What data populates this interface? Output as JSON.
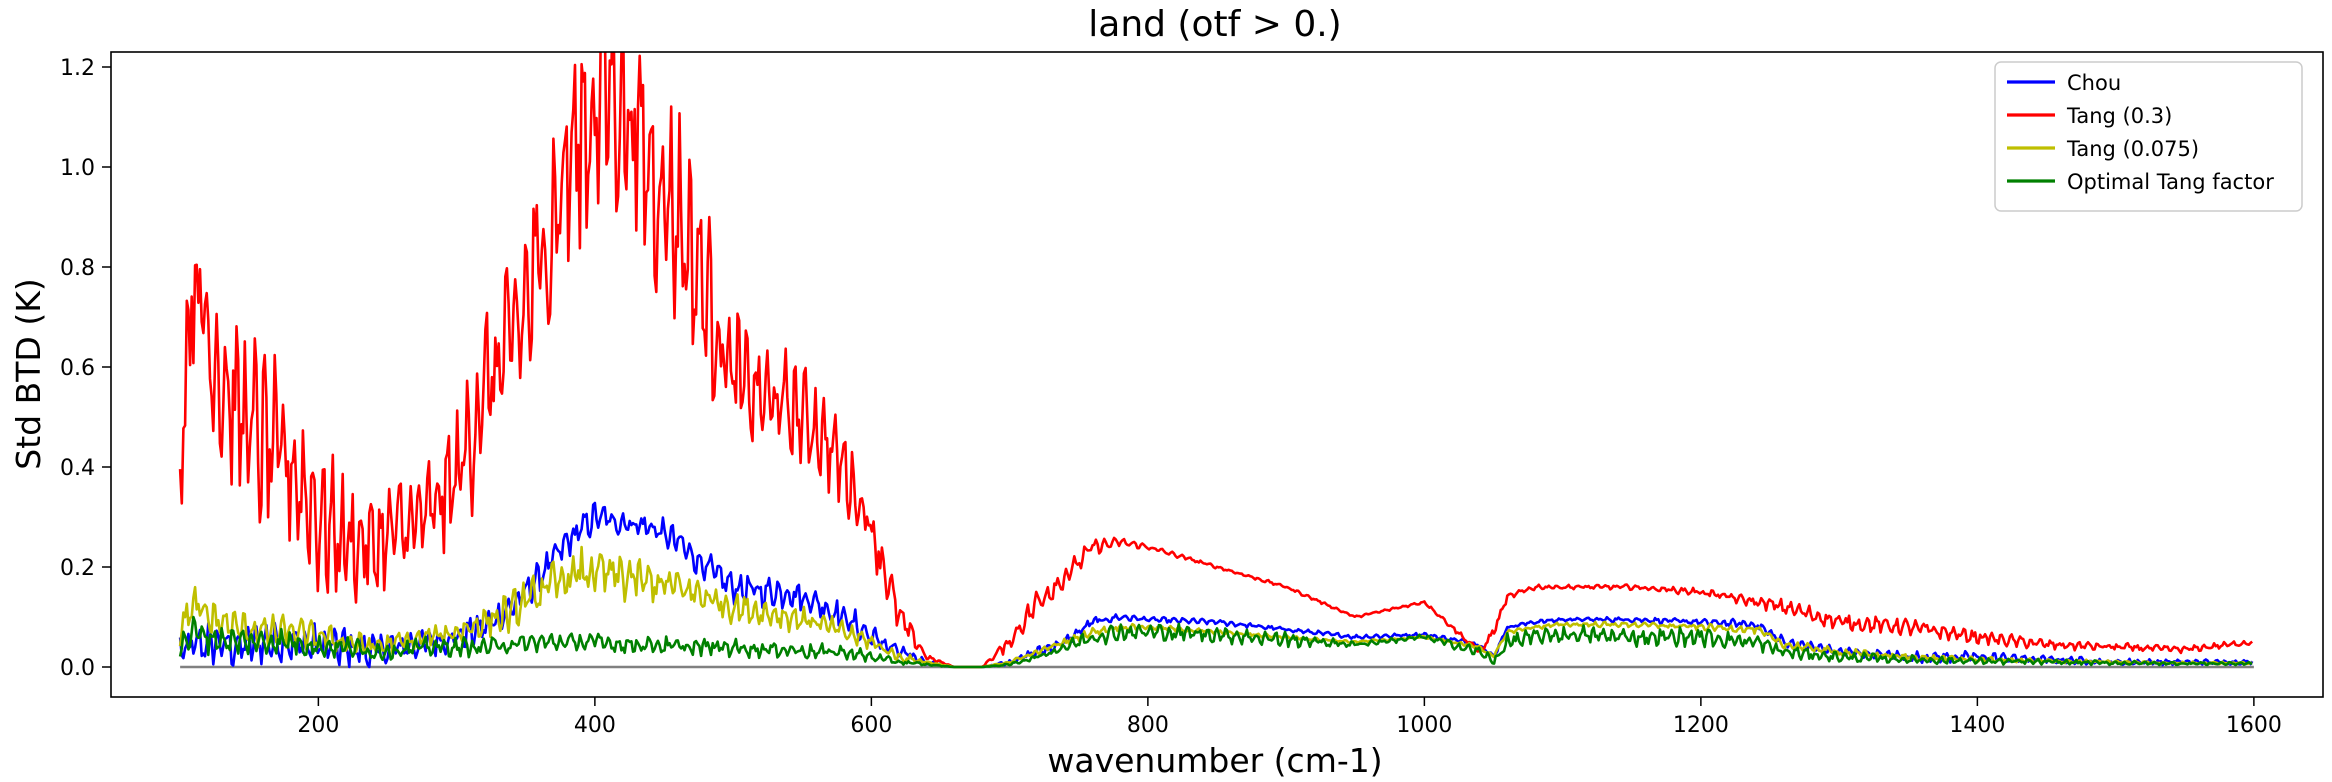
{
  "chart_data": {
    "type": "line",
    "title": "land (otf > 0.)",
    "xlabel": "wavenumber (cm-1)",
    "ylabel": "Std BTD (K)",
    "xlim": [
      50,
      1650
    ],
    "ylim": [
      -0.06,
      1.23
    ],
    "xticks": [
      200,
      400,
      600,
      800,
      1000,
      1200,
      1400,
      1600
    ],
    "yticks": [
      0.0,
      0.2,
      0.4,
      0.6,
      0.8,
      1.0,
      1.2
    ],
    "xtick_labels": [
      "200",
      "400",
      "600",
      "800",
      "1000",
      "1200",
      "1400",
      "1600"
    ],
    "ytick_labels": [
      "0.0",
      "0.2",
      "0.4",
      "0.6",
      "0.8",
      "1.0",
      "1.2"
    ],
    "grid": false,
    "legend_position": "top-right",
    "baseline": {
      "value": 0.0,
      "color": "#808080"
    },
    "series": [
      {
        "name": "Chou",
        "color": "#0000ff",
        "x": [
          100,
          120,
          140,
          160,
          180,
          200,
          220,
          240,
          260,
          280,
          300,
          320,
          340,
          360,
          380,
          400,
          420,
          440,
          460,
          480,
          500,
          520,
          540,
          560,
          580,
          600,
          620,
          640,
          660,
          680,
          700,
          720,
          740,
          760,
          780,
          800,
          850,
          900,
          950,
          1000,
          1040,
          1050,
          1060,
          1080,
          1100,
          1150,
          1200,
          1240,
          1260,
          1300,
          1350,
          1400,
          1450,
          1500,
          1550,
          1600
        ],
        "y": [
          0.03,
          0.05,
          0.04,
          0.05,
          0.05,
          0.04,
          0.04,
          0.03,
          0.04,
          0.05,
          0.06,
          0.08,
          0.12,
          0.18,
          0.25,
          0.3,
          0.29,
          0.28,
          0.25,
          0.2,
          0.16,
          0.15,
          0.15,
          0.13,
          0.1,
          0.06,
          0.03,
          0.01,
          0.0,
          0.0,
          0.01,
          0.03,
          0.05,
          0.09,
          0.1,
          0.095,
          0.09,
          0.075,
          0.06,
          0.065,
          0.045,
          0.02,
          0.08,
          0.09,
          0.095,
          0.095,
          0.09,
          0.085,
          0.05,
          0.03,
          0.02,
          0.02,
          0.015,
          0.01,
          0.01,
          0.01
        ],
        "jitter": [
          0.08,
          0.08,
          0.08,
          0.08,
          0.08,
          0.08,
          0.08,
          0.08,
          0.06,
          0.06,
          0.06,
          0.06,
          0.06,
          0.06,
          0.06,
          0.06,
          0.06,
          0.06,
          0.06,
          0.06,
          0.06,
          0.06,
          0.06,
          0.06,
          0.06,
          0.05,
          0.03,
          0.01,
          0.0,
          0.0,
          0.01,
          0.02,
          0.02,
          0.02,
          0.015,
          0.01,
          0.01,
          0.008,
          0.008,
          0.008,
          0.01,
          0.01,
          0.01,
          0.008,
          0.008,
          0.01,
          0.01,
          0.02,
          0.02,
          0.02,
          0.02,
          0.02,
          0.015,
          0.012,
          0.01,
          0.008
        ]
      },
      {
        "name": "Tang (0.3)",
        "color": "#ff0000",
        "x": [
          100,
          110,
          120,
          140,
          160,
          180,
          200,
          220,
          240,
          260,
          280,
          300,
          320,
          340,
          360,
          380,
          400,
          410,
          420,
          440,
          460,
          480,
          500,
          520,
          540,
          560,
          580,
          600,
          620,
          640,
          660,
          680,
          700,
          720,
          740,
          760,
          780,
          800,
          850,
          900,
          950,
          1000,
          1040,
          1050,
          1060,
          1080,
          1100,
          1150,
          1200,
          1240,
          1260,
          1300,
          1350,
          1400,
          1450,
          1500,
          1550,
          1600
        ],
        "y": [
          0.45,
          0.8,
          0.65,
          0.52,
          0.45,
          0.4,
          0.3,
          0.25,
          0.24,
          0.28,
          0.3,
          0.38,
          0.55,
          0.65,
          0.8,
          1.0,
          1.12,
          1.17,
          1.12,
          1.0,
          0.9,
          0.75,
          0.58,
          0.54,
          0.52,
          0.48,
          0.4,
          0.28,
          0.1,
          0.02,
          0.0,
          0.0,
          0.05,
          0.13,
          0.18,
          0.24,
          0.25,
          0.24,
          0.2,
          0.16,
          0.1,
          0.13,
          0.03,
          0.07,
          0.14,
          0.16,
          0.16,
          0.16,
          0.15,
          0.13,
          0.12,
          0.09,
          0.08,
          0.06,
          0.045,
          0.04,
          0.035,
          0.05
        ],
        "jitter": [
          0.3,
          0.35,
          0.35,
          0.35,
          0.35,
          0.3,
          0.28,
          0.24,
          0.2,
          0.22,
          0.24,
          0.26,
          0.32,
          0.34,
          0.4,
          0.45,
          0.5,
          0.45,
          0.45,
          0.45,
          0.42,
          0.36,
          0.28,
          0.22,
          0.2,
          0.18,
          0.16,
          0.12,
          0.06,
          0.01,
          0.0,
          0.0,
          0.03,
          0.05,
          0.05,
          0.03,
          0.015,
          0.01,
          0.006,
          0.006,
          0.005,
          0.005,
          0.015,
          0.02,
          0.01,
          0.01,
          0.008,
          0.01,
          0.015,
          0.02,
          0.03,
          0.03,
          0.03,
          0.025,
          0.02,
          0.015,
          0.012,
          0.01
        ]
      },
      {
        "name": "Tang (0.075)",
        "color": "#bfbf00",
        "x": [
          100,
          110,
          120,
          140,
          160,
          180,
          200,
          220,
          240,
          260,
          280,
          300,
          320,
          340,
          360,
          380,
          400,
          420,
          440,
          460,
          480,
          500,
          520,
          540,
          560,
          580,
          600,
          620,
          640,
          660,
          680,
          700,
          720,
          740,
          760,
          780,
          800,
          850,
          900,
          950,
          1000,
          1040,
          1050,
          1060,
          1080,
          1100,
          1150,
          1200,
          1240,
          1260,
          1300,
          1350,
          1400,
          1450,
          1500,
          1550,
          1600
        ],
        "y": [
          0.08,
          0.12,
          0.1,
          0.08,
          0.07,
          0.07,
          0.06,
          0.05,
          0.04,
          0.05,
          0.06,
          0.07,
          0.09,
          0.11,
          0.15,
          0.18,
          0.19,
          0.18,
          0.17,
          0.16,
          0.14,
          0.12,
          0.11,
          0.1,
          0.09,
          0.07,
          0.05,
          0.02,
          0.01,
          0.0,
          0.0,
          0.01,
          0.03,
          0.05,
          0.07,
          0.08,
          0.08,
          0.07,
          0.06,
          0.05,
          0.06,
          0.04,
          0.02,
          0.07,
          0.08,
          0.085,
          0.085,
          0.08,
          0.075,
          0.045,
          0.03,
          0.02,
          0.015,
          0.012,
          0.01,
          0.008,
          0.008
        ],
        "jitter": [
          0.08,
          0.08,
          0.08,
          0.06,
          0.06,
          0.06,
          0.05,
          0.05,
          0.04,
          0.04,
          0.04,
          0.05,
          0.06,
          0.08,
          0.08,
          0.09,
          0.1,
          0.09,
          0.08,
          0.08,
          0.07,
          0.06,
          0.05,
          0.05,
          0.04,
          0.04,
          0.03,
          0.02,
          0.005,
          0.0,
          0.0,
          0.005,
          0.01,
          0.015,
          0.015,
          0.012,
          0.01,
          0.008,
          0.006,
          0.005,
          0.005,
          0.008,
          0.008,
          0.008,
          0.008,
          0.008,
          0.01,
          0.012,
          0.015,
          0.015,
          0.015,
          0.012,
          0.01,
          0.008,
          0.006,
          0.005,
          0.005
        ]
      },
      {
        "name": "Optimal Tang factor",
        "color": "#008000",
        "x": [
          100,
          110,
          120,
          140,
          160,
          180,
          200,
          220,
          240,
          260,
          280,
          300,
          320,
          340,
          360,
          380,
          400,
          420,
          440,
          460,
          480,
          500,
          520,
          540,
          560,
          580,
          600,
          620,
          640,
          660,
          680,
          700,
          720,
          740,
          760,
          780,
          800,
          850,
          900,
          950,
          1000,
          1040,
          1050,
          1060,
          1080,
          1100,
          1150,
          1200,
          1240,
          1260,
          1300,
          1350,
          1400,
          1450,
          1500,
          1550,
          1600
        ],
        "y": [
          0.04,
          0.07,
          0.06,
          0.05,
          0.05,
          0.05,
          0.04,
          0.04,
          0.03,
          0.035,
          0.04,
          0.04,
          0.04,
          0.045,
          0.05,
          0.05,
          0.05,
          0.045,
          0.045,
          0.04,
          0.04,
          0.04,
          0.035,
          0.035,
          0.03,
          0.03,
          0.02,
          0.01,
          0.005,
          0.0,
          0.0,
          0.005,
          0.02,
          0.04,
          0.06,
          0.07,
          0.07,
          0.065,
          0.055,
          0.045,
          0.06,
          0.03,
          0.01,
          0.05,
          0.06,
          0.065,
          0.06,
          0.06,
          0.05,
          0.03,
          0.02,
          0.015,
          0.012,
          0.01,
          0.008,
          0.007,
          0.007
        ],
        "jitter": [
          0.05,
          0.06,
          0.06,
          0.05,
          0.05,
          0.05,
          0.04,
          0.04,
          0.035,
          0.035,
          0.035,
          0.035,
          0.035,
          0.035,
          0.035,
          0.035,
          0.035,
          0.035,
          0.035,
          0.035,
          0.035,
          0.035,
          0.03,
          0.03,
          0.03,
          0.03,
          0.02,
          0.01,
          0.004,
          0.0,
          0.0,
          0.004,
          0.01,
          0.02,
          0.03,
          0.035,
          0.035,
          0.03,
          0.03,
          0.01,
          0.01,
          0.02,
          0.02,
          0.03,
          0.035,
          0.035,
          0.035,
          0.035,
          0.03,
          0.025,
          0.02,
          0.015,
          0.012,
          0.01,
          0.008,
          0.006,
          0.006
        ]
      }
    ]
  }
}
